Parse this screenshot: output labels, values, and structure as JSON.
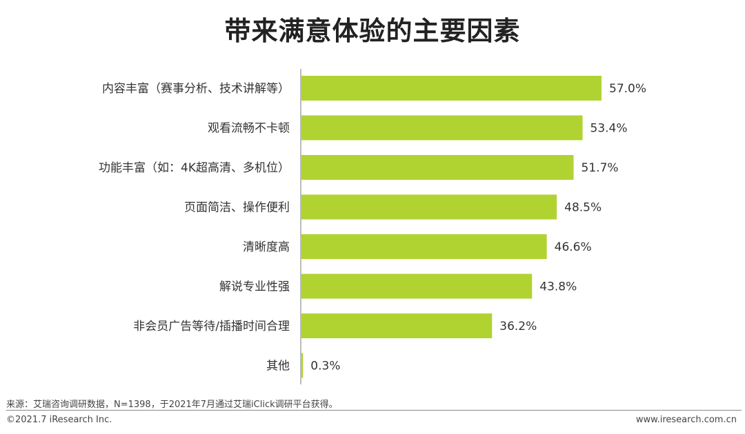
{
  "title": "带来满意体验的主要因素",
  "chart_data": {
    "type": "bar",
    "orientation": "horizontal",
    "title": "带来满意体验的主要因素",
    "categories": [
      "内容丰富（赛事分析、技术讲解等）",
      "观看流畅不卡顿",
      "功能丰富（如：4K超高清、多机位）",
      "页面简洁、操作便利",
      "清晰度高",
      "解说专业性强",
      "非会员广告等待/插播时间合理",
      "其他"
    ],
    "values": [
      57.0,
      53.4,
      51.7,
      48.5,
      46.6,
      43.8,
      36.2,
      0.3
    ],
    "value_labels": [
      "57.0%",
      "53.4%",
      "51.7%",
      "48.5%",
      "46.6%",
      "43.8%",
      "36.2%",
      "0.3%"
    ],
    "xlim": [
      0,
      60
    ],
    "unit": "%",
    "grid": false,
    "legend": "none",
    "bar_color": "#b0d332"
  },
  "footer": {
    "source": "来源：艾瑞咨询调研数据，N=1398，于2021年7月通过艾瑞iClick调研平台获得。",
    "copyright": "©2021.7 iResearch Inc.",
    "website": "www.iresearch.com.cn"
  }
}
